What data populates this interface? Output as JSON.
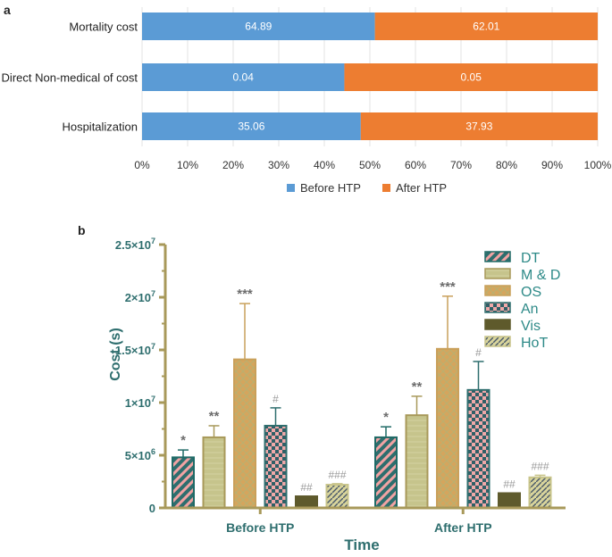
{
  "colors": {
    "before": "#5b9bd5",
    "after": "#ed7d31",
    "axis_b": "#a8995a",
    "teal": "#2e6e6e",
    "star": "#6d6d6d",
    "hash": "#9a9a9a"
  },
  "chart_data": [
    {
      "type": "bar",
      "orientation": "horizontal",
      "stacked": "percent",
      "panel_label": "a",
      "categories": [
        "Mortality cost",
        "Direct Non-medical of cost",
        "Hospitalization"
      ],
      "series": [
        {
          "name": "Before HTP",
          "values": [
            64.89,
            0.04,
            35.06
          ],
          "shares": [
            51.1,
            44.4,
            48.0
          ]
        },
        {
          "name": "After HTP",
          "values": [
            62.01,
            0.05,
            37.93
          ],
          "shares": [
            48.9,
            55.6,
            52.0
          ]
        }
      ],
      "data_labels": {
        "Before HTP": [
          "64.89",
          "0.04",
          "35.06"
        ],
        "After HTP": [
          "62.01",
          "0.05",
          "37.93"
        ]
      },
      "xlim": [
        0,
        100
      ],
      "xticks": [
        "0%",
        "10%",
        "20%",
        "30%",
        "40%",
        "50%",
        "60%",
        "70%",
        "80%",
        "90%",
        "100%"
      ],
      "legend": [
        "Before HTP",
        "After HTP"
      ],
      "legend_position": "bottom"
    },
    {
      "type": "bar",
      "panel_label": "b",
      "categories": [
        "Before HTP",
        "After HTP"
      ],
      "series": [
        {
          "name": "DT",
          "values": [
            4800000,
            6700000
          ],
          "errors": [
            700000,
            1000000
          ],
          "annotation": [
            "*",
            "*"
          ]
        },
        {
          "name": "M & D",
          "values": [
            6700000,
            8800000
          ],
          "errors": [
            1100000,
            1800000
          ],
          "annotation": [
            "**",
            "**"
          ]
        },
        {
          "name": "OS",
          "values": [
            14100000,
            15100000
          ],
          "errors": [
            5300000,
            5000000
          ],
          "annotation": [
            "***",
            "***"
          ]
        },
        {
          "name": "An",
          "values": [
            7800000,
            11200000
          ],
          "errors": [
            1700000,
            2700000
          ],
          "annotation": [
            "#",
            "#"
          ]
        },
        {
          "name": "Vis",
          "values": [
            1100000,
            1400000
          ],
          "errors": [
            0,
            0
          ],
          "annotation": [
            "##",
            "##"
          ]
        },
        {
          "name": "HoT",
          "values": [
            2200000,
            2900000
          ],
          "errors": [
            100000,
            200000
          ],
          "annotation": [
            "###",
            "###"
          ]
        }
      ],
      "ylim": [
        0,
        25000000
      ],
      "yticks": [
        0,
        5000000,
        10000000,
        15000000,
        20000000,
        25000000
      ],
      "ytick_labels": [
        {
          "m": "0",
          "e": ""
        },
        {
          "m": "5×10",
          "e": "6"
        },
        {
          "m": "1×10",
          "e": "7"
        },
        {
          "m": "1.5×10",
          "e": "7"
        },
        {
          "m": "2×10",
          "e": "7"
        },
        {
          "m": "2.5×10",
          "e": "7"
        }
      ],
      "xlabel": "Time",
      "ylabel": "Cost (s)",
      "legend_position": "top-right"
    }
  ]
}
